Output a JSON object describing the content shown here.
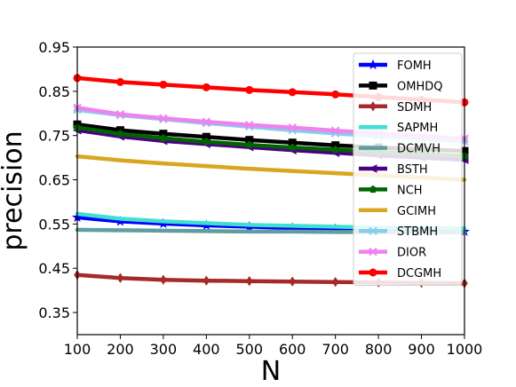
{
  "chart_data": {
    "type": "line",
    "xlabel": "N",
    "ylabel": "precision",
    "x": [
      100,
      200,
      300,
      400,
      500,
      600,
      700,
      800,
      900,
      1000
    ],
    "xlim": [
      100,
      1000
    ],
    "ylim": [
      0.3,
      0.95
    ],
    "xticks": [
      "100",
      "200",
      "300",
      "400",
      "500",
      "600",
      "700",
      "800",
      "900",
      "1000"
    ],
    "yticks": [
      "0.95",
      "0.85",
      "0.75",
      "0.65",
      "0.55",
      "0.45",
      "0.35"
    ],
    "ytick_values": [
      0.95,
      0.85,
      0.75,
      0.65,
      0.55,
      0.45,
      0.35
    ],
    "grid": false,
    "legend_position": "right",
    "series": [
      {
        "name": "FOMH",
        "color": "#0000ff",
        "marker": "star",
        "values": [
          0.565,
          0.556,
          0.551,
          0.547,
          0.544,
          0.541,
          0.539,
          0.537,
          0.535,
          0.533
        ]
      },
      {
        "name": "OMHDQ",
        "color": "#000000",
        "marker": "square",
        "values": [
          0.775,
          0.762,
          0.754,
          0.747,
          0.74,
          0.734,
          0.728,
          0.723,
          0.719,
          0.715
        ]
      },
      {
        "name": "SDMH",
        "color": "#a52a2a",
        "marker": "diamond",
        "values": [
          0.435,
          0.428,
          0.424,
          0.422,
          0.421,
          0.42,
          0.419,
          0.418,
          0.417,
          0.416
        ]
      },
      {
        "name": "SAPMH",
        "color": "#40e0d0",
        "marker": "none",
        "values": [
          0.573,
          0.562,
          0.556,
          0.552,
          0.548,
          0.546,
          0.544,
          0.542,
          0.541,
          0.54
        ]
      },
      {
        "name": "DCMVH",
        "color": "#5f9ea0",
        "marker": "none",
        "values": [
          0.537,
          0.536,
          0.535,
          0.534,
          0.533,
          0.533,
          0.532,
          0.532,
          0.531,
          0.531
        ]
      },
      {
        "name": "BSTH",
        "color": "#4b0082",
        "marker": "triangle-left",
        "values": [
          0.762,
          0.748,
          0.738,
          0.731,
          0.724,
          0.717,
          0.711,
          0.705,
          0.7,
          0.695
        ]
      },
      {
        "name": "NCH",
        "color": "#006400",
        "marker": "pentagon",
        "values": [
          0.768,
          0.754,
          0.744,
          0.736,
          0.729,
          0.723,
          0.718,
          0.713,
          0.708,
          0.704
        ]
      },
      {
        "name": "GCIMH",
        "color": "#daa520",
        "marker": "none",
        "values": [
          0.703,
          0.694,
          0.687,
          0.681,
          0.675,
          0.67,
          0.665,
          0.66,
          0.655,
          0.65
        ]
      },
      {
        "name": "STBMH",
        "color": "#87ceeb",
        "marker": "x",
        "values": [
          0.808,
          0.796,
          0.787,
          0.778,
          0.77,
          0.762,
          0.755,
          0.748,
          0.742,
          0.737
        ]
      },
      {
        "name": "DIOR",
        "color": "#ee82ee",
        "marker": "x",
        "values": [
          0.813,
          0.798,
          0.789,
          0.781,
          0.774,
          0.768,
          0.761,
          0.755,
          0.749,
          0.743
        ]
      },
      {
        "name": "DCGMH",
        "color": "#ff0000",
        "marker": "circle",
        "values": [
          0.88,
          0.871,
          0.865,
          0.859,
          0.853,
          0.848,
          0.843,
          0.837,
          0.831,
          0.825
        ]
      }
    ]
  }
}
